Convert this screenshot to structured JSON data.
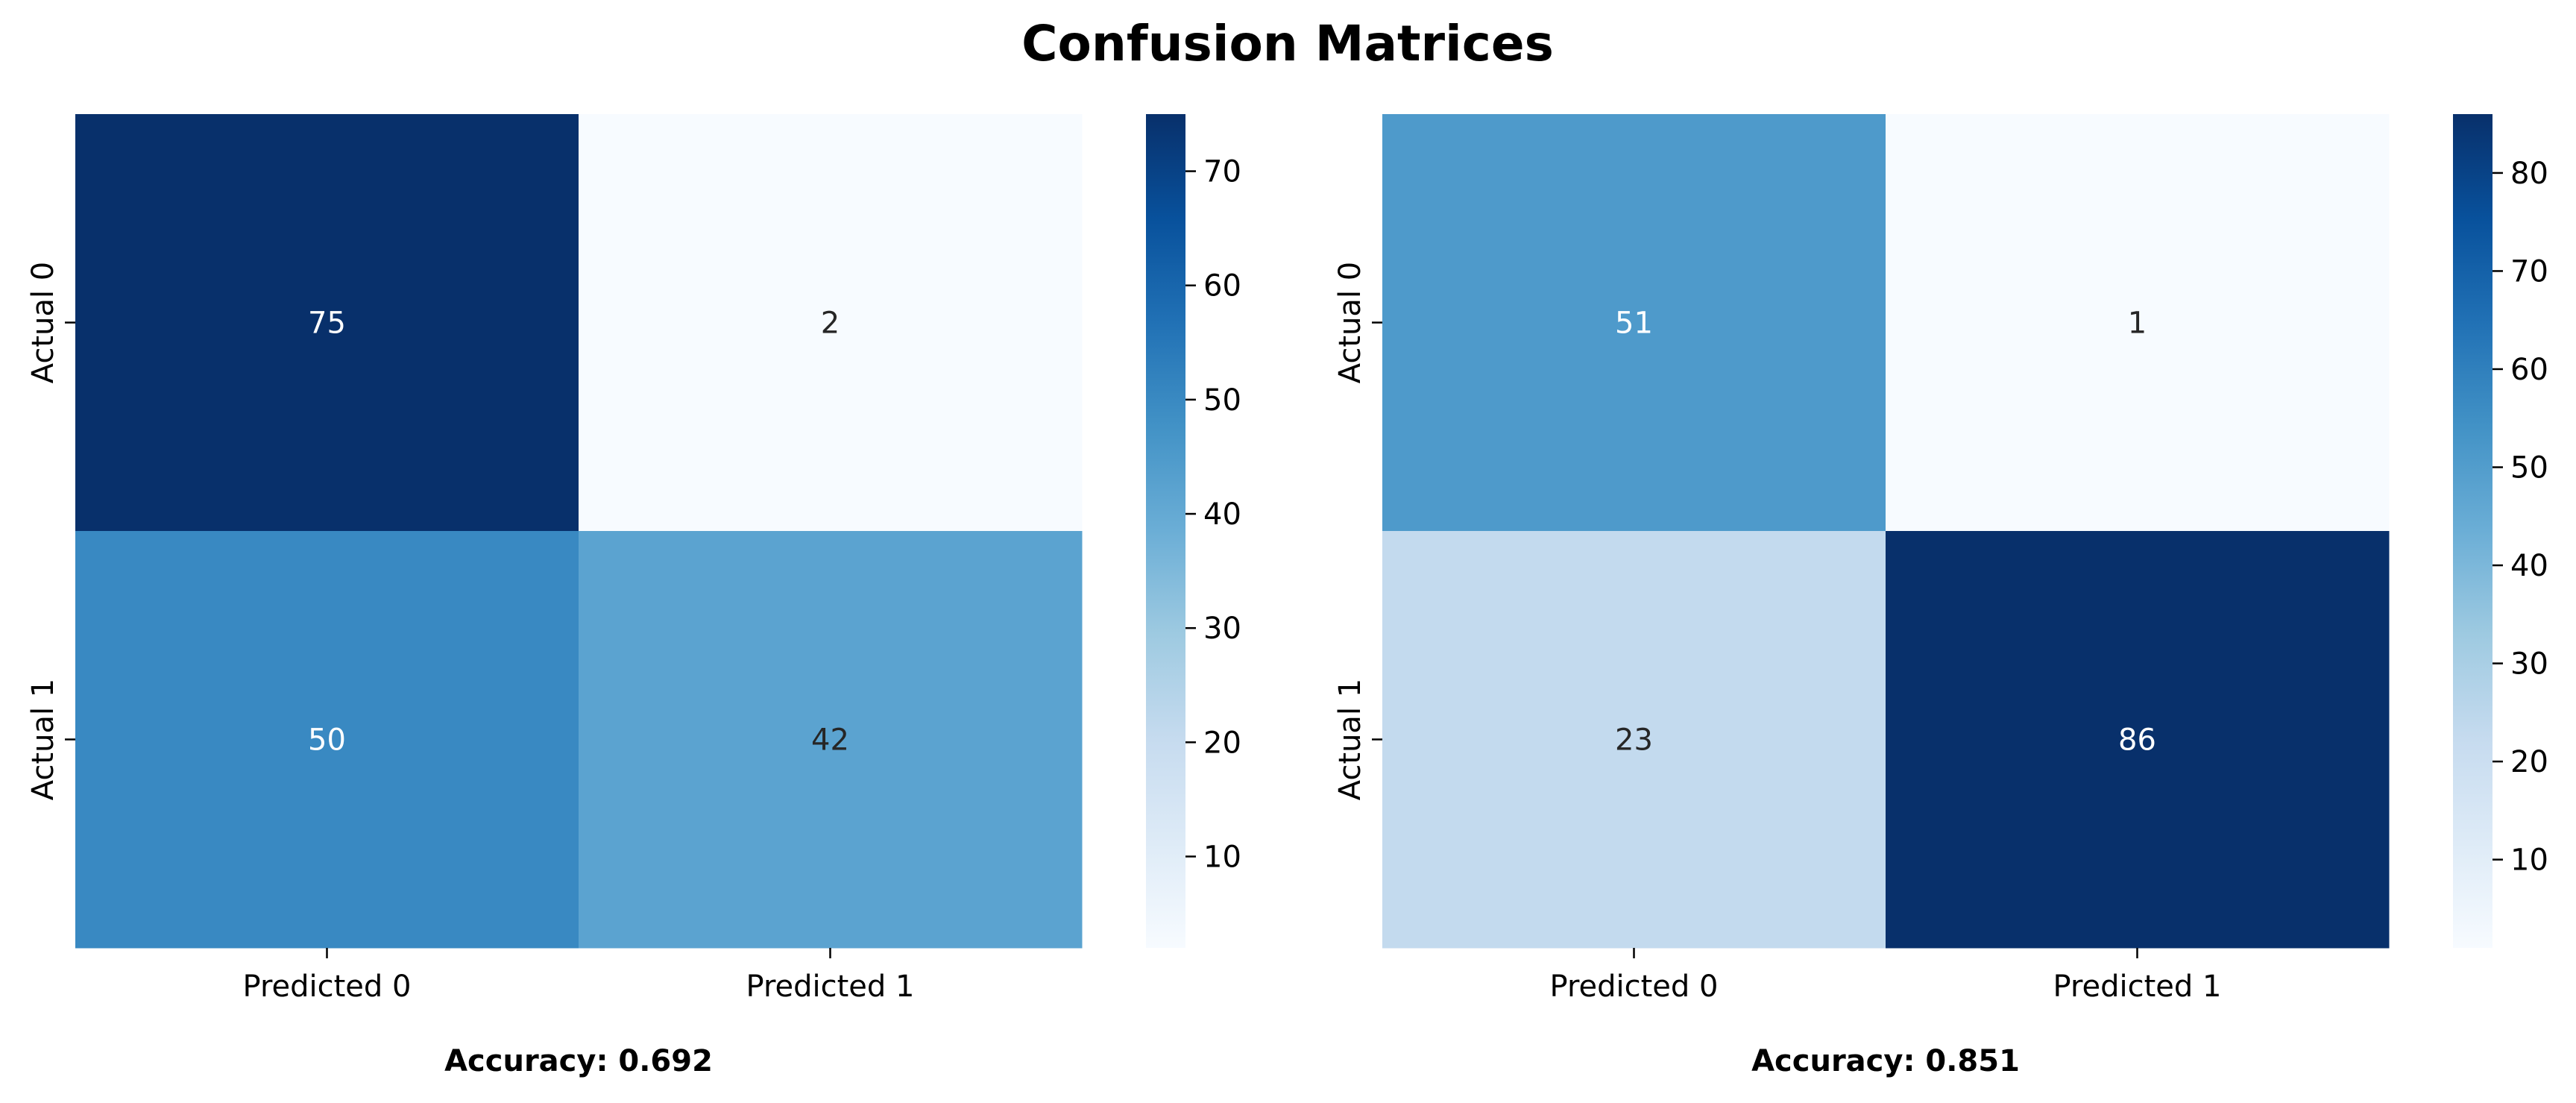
{
  "title": "Confusion Matrices",
  "colormap": "Blues",
  "chart_data": [
    {
      "type": "heatmap",
      "x_categories": [
        "Predicted 0",
        "Predicted 1"
      ],
      "y_categories": [
        "Actual 0",
        "Actual 1"
      ],
      "values": [
        [
          75,
          2
        ],
        [
          50,
          42
        ]
      ],
      "colorbar": {
        "vmin": 2,
        "vmax": 75,
        "ticks": [
          10,
          20,
          30,
          40,
          50,
          60,
          70
        ]
      },
      "caption": "Accuracy: 0.692"
    },
    {
      "type": "heatmap",
      "x_categories": [
        "Predicted 0",
        "Predicted 1"
      ],
      "y_categories": [
        "Actual 0",
        "Actual 1"
      ],
      "values": [
        [
          51,
          1
        ],
        [
          23,
          86
        ]
      ],
      "colorbar": {
        "vmin": 1,
        "vmax": 86,
        "ticks": [
          10,
          20,
          30,
          40,
          50,
          60,
          70,
          80
        ]
      },
      "caption": "Accuracy: 0.851"
    }
  ]
}
